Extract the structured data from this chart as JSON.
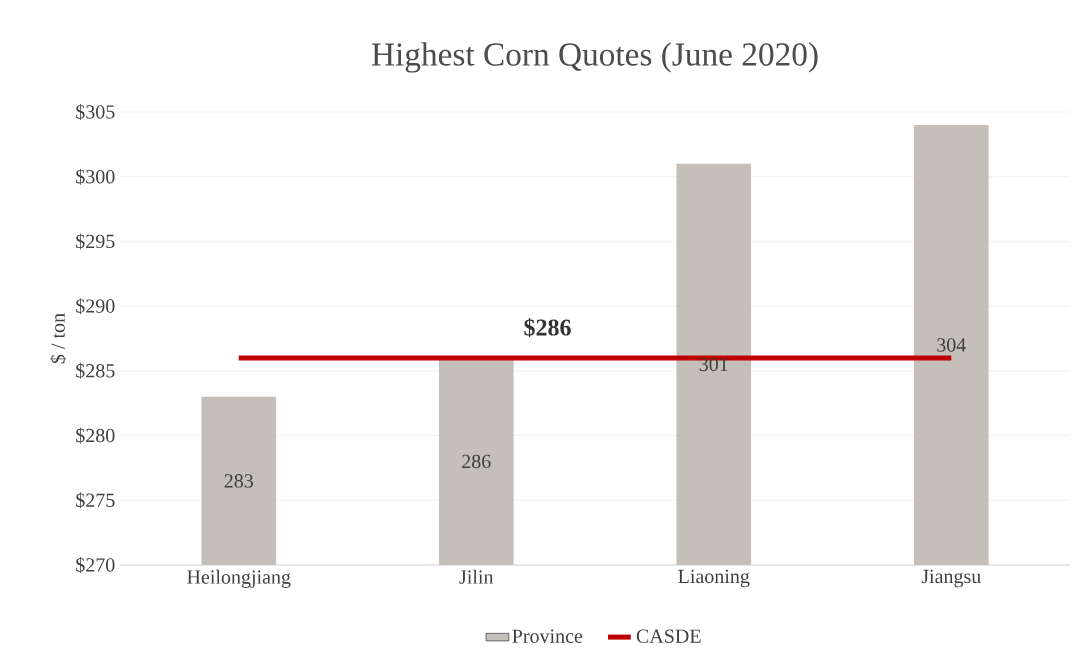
{
  "chart_data": {
    "type": "bar",
    "title": "Highest Corn Quotes (June 2020)",
    "ylabel": "$ / ton",
    "categories": [
      "Heilongjiang",
      "Jilin",
      "Liaoning",
      "Jiangsu"
    ],
    "series": [
      {
        "name": "Province",
        "color": "#c4bfb8",
        "values": [
          283,
          286,
          301,
          304
        ],
        "value_labels": [
          "283",
          "286",
          "301",
          "304"
        ]
      },
      {
        "name": "CASDE",
        "type": "line",
        "color": "#c00000",
        "values": [
          286,
          286,
          286,
          286
        ]
      }
    ],
    "annotations": [
      {
        "text": "$286",
        "y": 286
      }
    ],
    "ylim": [
      270,
      305
    ],
    "yticks": [
      {
        "value": 270,
        "label": "$270"
      },
      {
        "value": 275,
        "label": "$275"
      },
      {
        "value": 280,
        "label": "$280"
      },
      {
        "value": 285,
        "label": "$285"
      },
      {
        "value": 290,
        "label": "$290"
      },
      {
        "value": 295,
        "label": "$295"
      },
      {
        "value": 300,
        "label": "$300"
      },
      {
        "value": 305,
        "label": "$305"
      }
    ],
    "grid": "y",
    "legend": "bottom",
    "marker": "none"
  }
}
